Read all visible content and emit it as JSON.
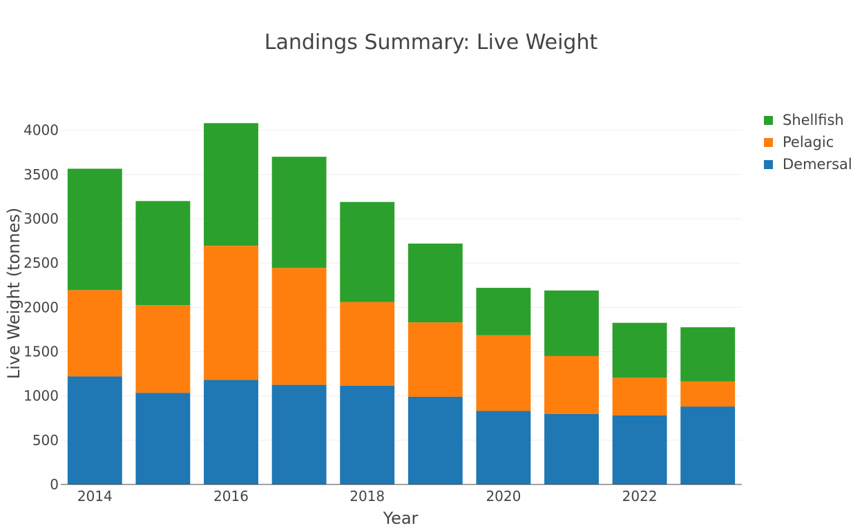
{
  "chart_data": {
    "type": "bar",
    "stacked": true,
    "title": "Landings Summary: Live Weight",
    "xlabel": "Year",
    "ylabel": "Live Weight (tonnes)",
    "categories": [
      2014,
      2015,
      2016,
      2017,
      2018,
      2019,
      2020,
      2021,
      2022,
      2023
    ],
    "x_tick_labels": [
      "2014",
      "2016",
      "2018",
      "2020",
      "2022"
    ],
    "y_tick_labels": [
      "0",
      "500",
      "1000",
      "1500",
      "2000",
      "2500",
      "3000",
      "3500",
      "4000"
    ],
    "ylim": [
      0,
      4200
    ],
    "grid": true,
    "legend_position": "top-right",
    "series": [
      {
        "name": "Demersal",
        "color": "#1f77b4",
        "values": [
          1220,
          1035,
          1180,
          1125,
          1115,
          990,
          830,
          795,
          780,
          880
        ]
      },
      {
        "name": "Pelagic",
        "color": "#ff7f0e",
        "values": [
          975,
          990,
          1515,
          1320,
          945,
          840,
          855,
          655,
          425,
          285
        ]
      },
      {
        "name": "Shellfish",
        "color": "#2ca02c",
        "values": [
          1370,
          1175,
          1385,
          1255,
          1130,
          890,
          535,
          740,
          620,
          610
        ]
      }
    ]
  }
}
